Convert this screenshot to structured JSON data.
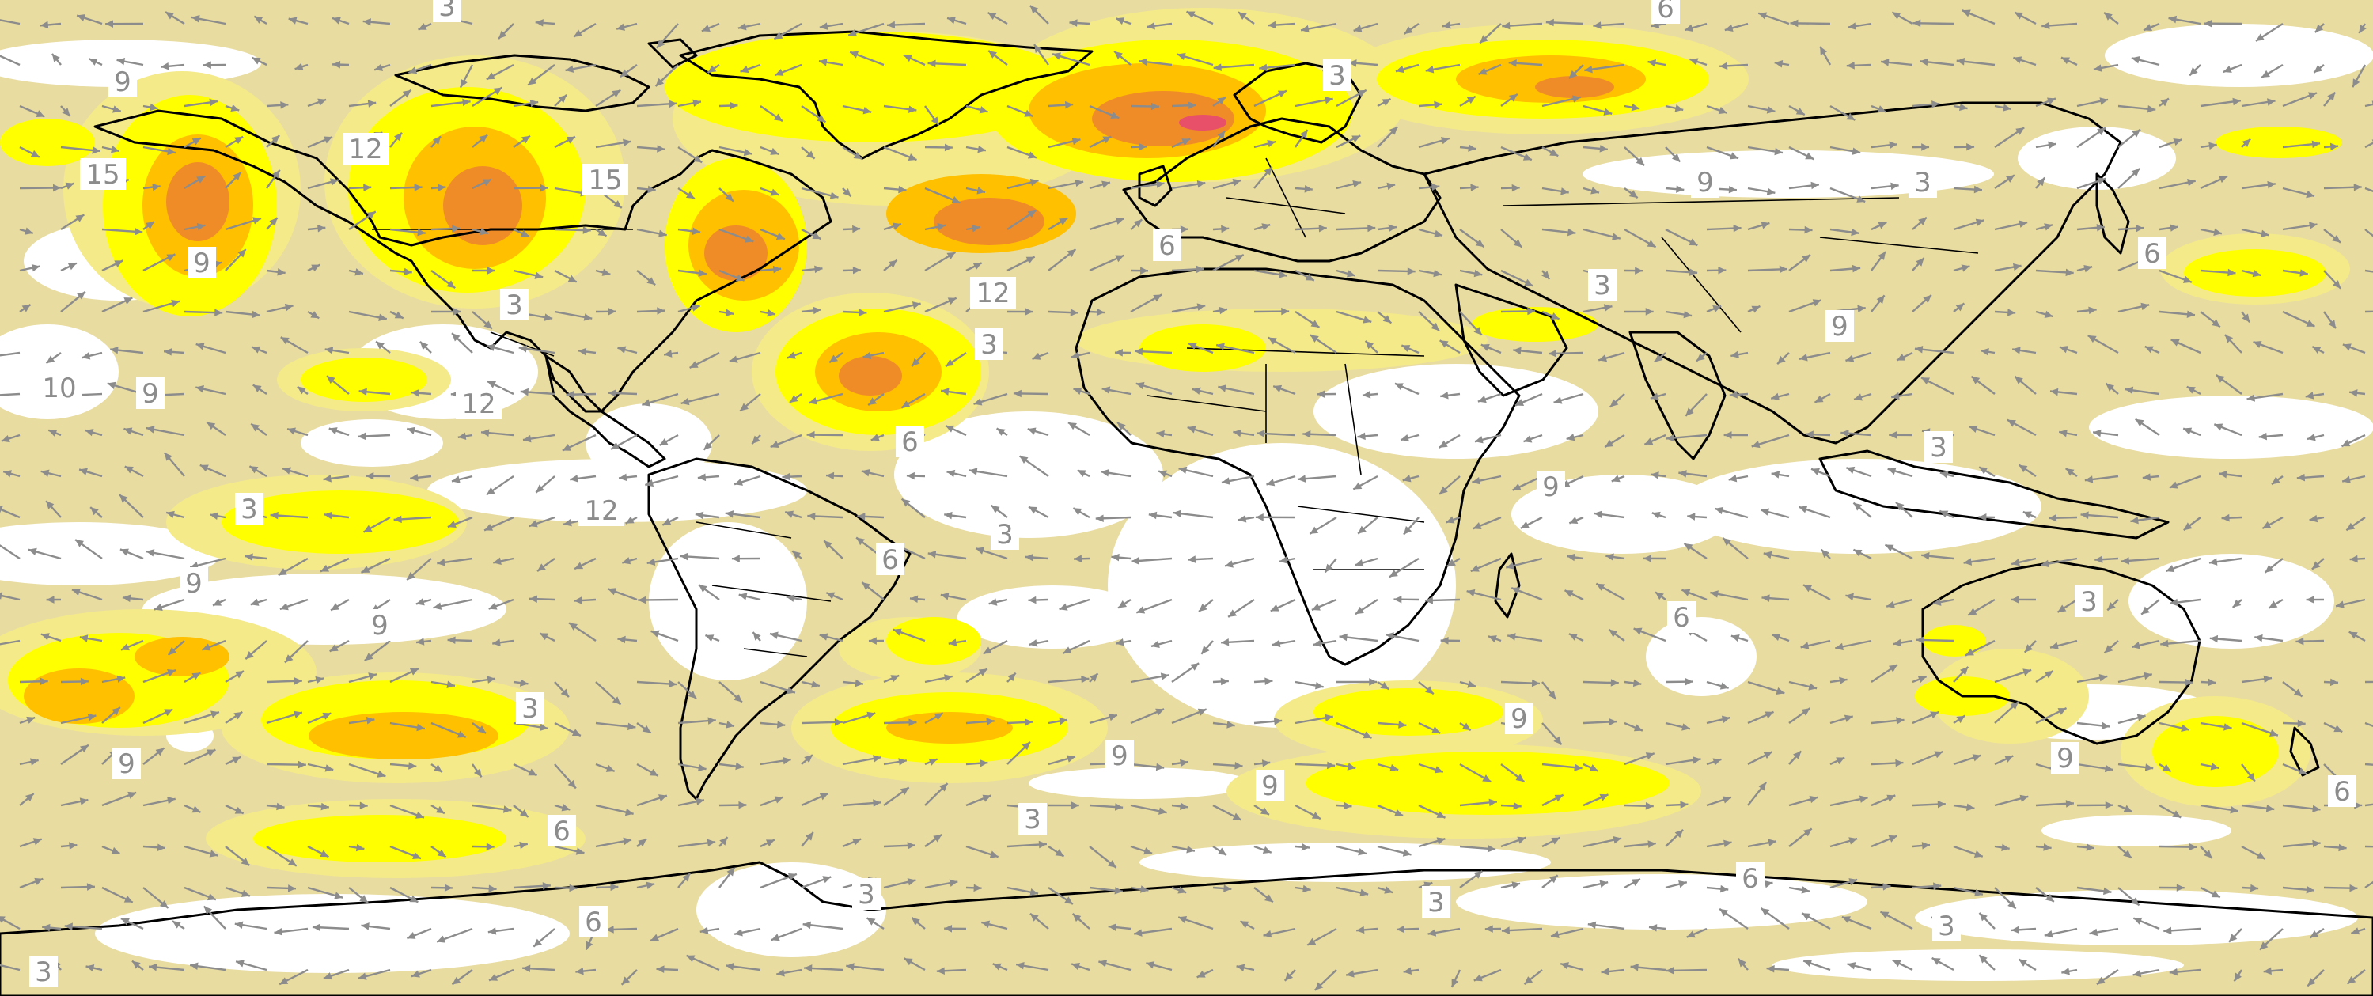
{
  "map": {
    "projection": "equirectangular-global",
    "colors": {
      "background": "#ffffff",
      "level_1": "#e8dca0",
      "level_2": "#f4ea8a",
      "level_3": "#ffff00",
      "level_4": "#ffc000",
      "level_5": "#f08c28",
      "level_6": "#e8506a",
      "coastline": "#000000",
      "arrow": "#8c8c8c",
      "label_text": "#8c8c8c"
    },
    "contour_labels": [
      "3",
      "6",
      "9",
      "12",
      "15",
      "9",
      "3",
      "6",
      "3",
      "15",
      "12",
      "9",
      "10",
      "9",
      "12",
      "3",
      "6",
      "3",
      "9",
      "6",
      "3",
      "12",
      "9",
      "3",
      "6",
      "9",
      "9",
      "6",
      "3",
      "3",
      "9",
      "9",
      "9",
      "9",
      "9",
      "6",
      "6",
      "6",
      "6",
      "3",
      "3",
      "3",
      "3",
      "3",
      "3",
      "3"
    ],
    "wind_arrows": "vector-field"
  }
}
